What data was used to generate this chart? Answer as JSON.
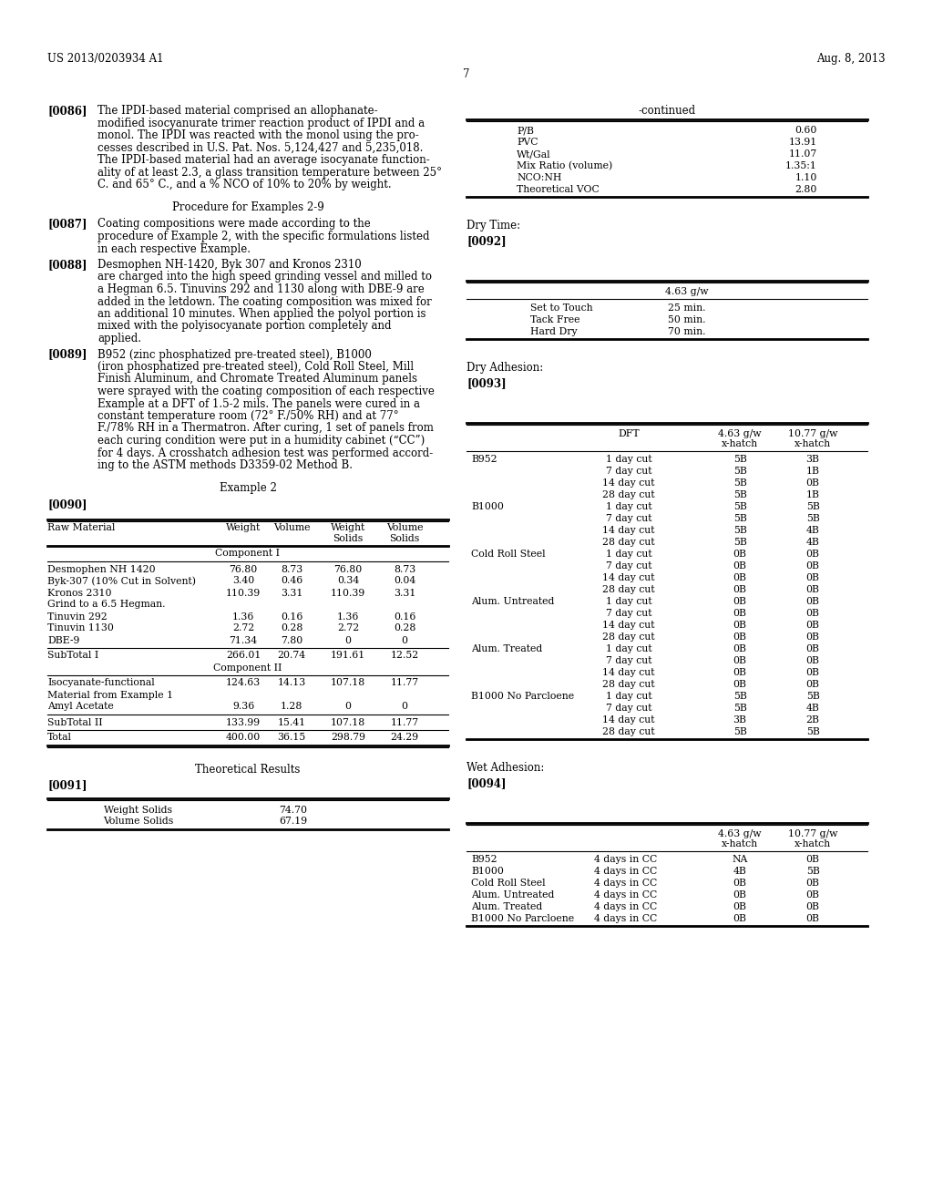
{
  "page_num": "7",
  "patent_num": "US 2013/0203934 A1",
  "patent_date": "Aug. 8, 2013",
  "bg_color": "#ffffff",
  "continued_table": {
    "title": "-continued",
    "rows": [
      [
        "P/B",
        "0.60"
      ],
      [
        "PVC",
        "13.91"
      ],
      [
        "Wt/Gal",
        "11.07"
      ],
      [
        "Mix Ratio (volume)",
        "1.35:1"
      ],
      [
        "NCO:NH",
        "1.10"
      ],
      [
        "Theoretical VOC",
        "2.80"
      ]
    ]
  },
  "dry_time_title": "Dry Time:",
  "dry_time_tag": "[0092]",
  "dry_time_table": {
    "col_header": "4.63 g/w",
    "rows": [
      [
        "Set to Touch",
        "25 min."
      ],
      [
        "Tack Free",
        "50 min."
      ],
      [
        "Hard Dry",
        "70 min."
      ]
    ]
  },
  "dry_adhesion_title": "Dry Adhesion:",
  "dry_adhesion_tag": "[0093]",
  "dry_adhesion_table": {
    "rows": [
      [
        "B952",
        "1 day cut",
        "5B",
        "3B"
      ],
      [
        "",
        "7 day cut",
        "5B",
        "1B"
      ],
      [
        "",
        "14 day cut",
        "5B",
        "0B"
      ],
      [
        "",
        "28 day cut",
        "5B",
        "1B"
      ],
      [
        "B1000",
        "1 day cut",
        "5B",
        "5B"
      ],
      [
        "",
        "7 day cut",
        "5B",
        "5B"
      ],
      [
        "",
        "14 day cut",
        "5B",
        "4B"
      ],
      [
        "",
        "28 day cut",
        "5B",
        "4B"
      ],
      [
        "Cold Roll Steel",
        "1 day cut",
        "0B",
        "0B"
      ],
      [
        "",
        "7 day cut",
        "0B",
        "0B"
      ],
      [
        "",
        "14 day cut",
        "0B",
        "0B"
      ],
      [
        "",
        "28 day cut",
        "0B",
        "0B"
      ],
      [
        "Alum. Untreated",
        "1 day cut",
        "0B",
        "0B"
      ],
      [
        "",
        "7 day cut",
        "0B",
        "0B"
      ],
      [
        "",
        "14 day cut",
        "0B",
        "0B"
      ],
      [
        "",
        "28 day cut",
        "0B",
        "0B"
      ],
      [
        "Alum. Treated",
        "1 day cut",
        "0B",
        "0B"
      ],
      [
        "",
        "7 day cut",
        "0B",
        "0B"
      ],
      [
        "",
        "14 day cut",
        "0B",
        "0B"
      ],
      [
        "",
        "28 day cut",
        "0B",
        "0B"
      ],
      [
        "B1000 No Parcloene",
        "1 day cut",
        "5B",
        "5B"
      ],
      [
        "",
        "7 day cut",
        "5B",
        "4B"
      ],
      [
        "",
        "14 day cut",
        "3B",
        "2B"
      ],
      [
        "",
        "28 day cut",
        "5B",
        "5B"
      ]
    ]
  },
  "example2_table": {
    "component_i_rows": [
      [
        "Desmophen NH 1420",
        "76.80",
        "8.73",
        "76.80",
        "8.73"
      ],
      [
        "Byk-307 (10% Cut in Solvent)",
        "3.40",
        "0.46",
        "0.34",
        "0.04"
      ],
      [
        "Kronos 2310",
        "110.39",
        "3.31",
        "110.39",
        "3.31"
      ],
      [
        "Grind to a 6.5 Hegman.",
        "",
        "",
        "",
        ""
      ],
      [
        "Tinuvin 292",
        "1.36",
        "0.16",
        "1.36",
        "0.16"
      ],
      [
        "Tinuvin 1130",
        "2.72",
        "0.28",
        "2.72",
        "0.28"
      ],
      [
        "DBE-9",
        "71.34",
        "7.80",
        "0",
        "0"
      ]
    ],
    "subtotal_i": [
      "SubTotal I",
      "266.01",
      "20.74",
      "191.61",
      "12.52"
    ],
    "component_ii_rows": [
      [
        "Isocyanate-functional",
        "124.63",
        "14.13",
        "107.18",
        "11.77"
      ],
      [
        "Material from Example 1",
        "",
        "",
        "",
        ""
      ],
      [
        "Amyl Acetate",
        "9.36",
        "1.28",
        "0",
        "0"
      ]
    ],
    "subtotal_ii": [
      "SubTotal II",
      "133.99",
      "15.41",
      "107.18",
      "11.77"
    ],
    "total": [
      "Total",
      "400.00",
      "36.15",
      "298.79",
      "24.29"
    ]
  },
  "theoretical_results": {
    "rows": [
      [
        "Weight Solids",
        "74.70"
      ],
      [
        "Volume Solids",
        "67.19"
      ]
    ]
  },
  "wet_adhesion_title": "Wet Adhesion:",
  "wet_adhesion_tag": "[0094]",
  "wet_adhesion_table": {
    "rows": [
      [
        "B952",
        "4 days in CC",
        "NA",
        "0B"
      ],
      [
        "B1000",
        "4 days in CC",
        "4B",
        "5B"
      ],
      [
        "Cold Roll Steel",
        "4 days in CC",
        "0B",
        "0B"
      ],
      [
        "Alum. Untreated",
        "4 days in CC",
        "0B",
        "0B"
      ],
      [
        "Alum. Treated",
        "4 days in CC",
        "0B",
        "0B"
      ],
      [
        "B1000 No Parcloene",
        "4 days in CC",
        "0B",
        "0B"
      ]
    ]
  }
}
